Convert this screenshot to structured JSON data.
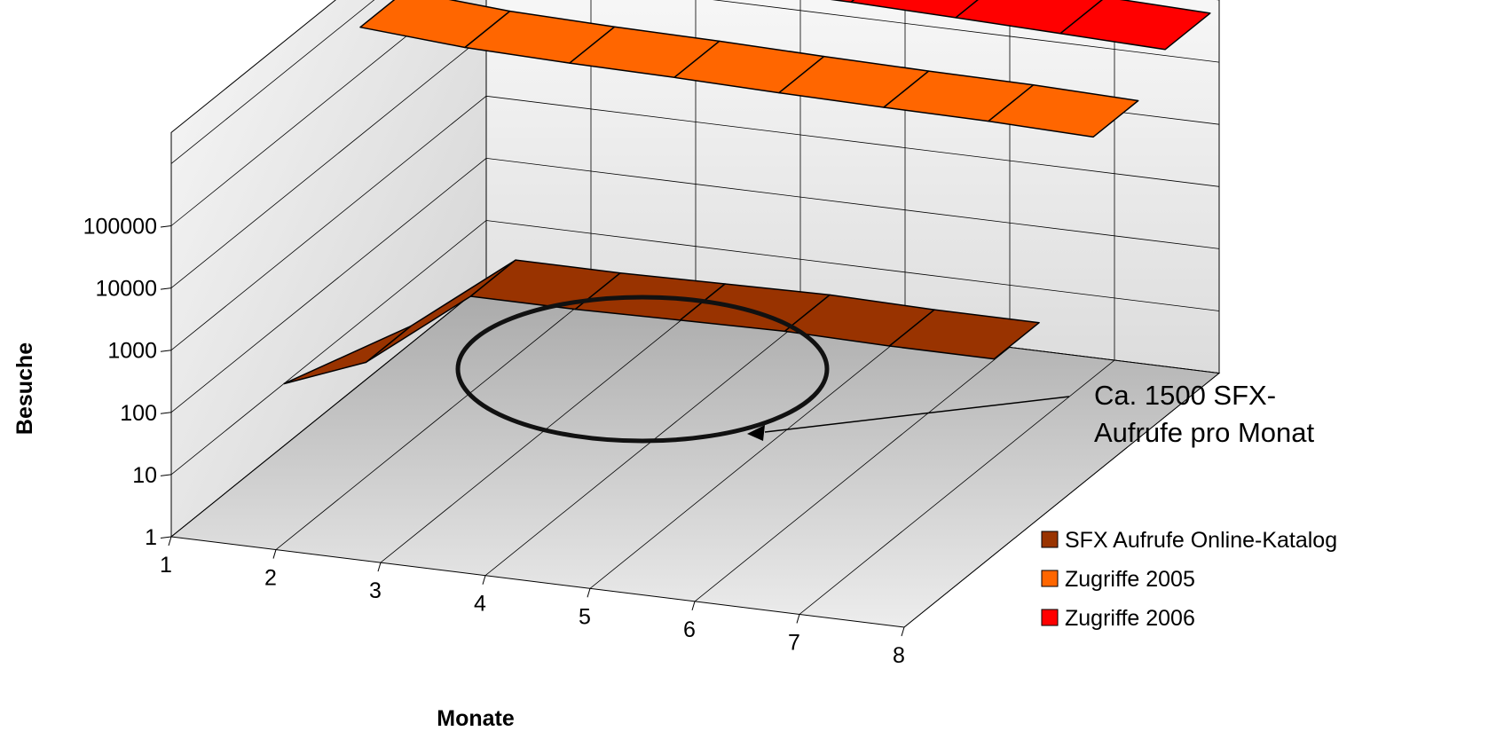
{
  "chart_data": {
    "type": "area",
    "variant": "3d-ribbon",
    "title": "",
    "xlabel": "Monate",
    "ylabel": "Besuche",
    "y_scale": "log",
    "ylim": [
      1,
      100000
    ],
    "y_ticks": [
      "1",
      "10",
      "100",
      "1000",
      "10000",
      "100000"
    ],
    "categories": [
      "1",
      "2",
      "3",
      "4",
      "5",
      "6",
      "7",
      "8"
    ],
    "series": [
      {
        "name": "SFX Aufrufe Online-Katalog",
        "color": "#993300",
        "values": [
          null,
          70,
          1300,
          1300,
          1400,
          1500,
          1400,
          1400
        ]
      },
      {
        "name": "Zugriffe 2005",
        "color": "#FF6600",
        "values": [
          550000,
          420000,
          380000,
          360000,
          330000,
          310000,
          300000,
          270000
        ]
      },
      {
        "name": "Zugriffe 2006",
        "color": "#FF0000",
        "values": [
          1500000,
          1300000,
          1250000,
          1150000,
          1100000,
          1000000,
          900000,
          800000
        ]
      }
    ],
    "annotation": {
      "lines": [
        "Ca. 1500 SFX-",
        "Aufrufe pro Monat"
      ],
      "target_series": "SFX Aufrufe Online-Katalog"
    },
    "legend_position": "bottom-right",
    "grid": true
  }
}
